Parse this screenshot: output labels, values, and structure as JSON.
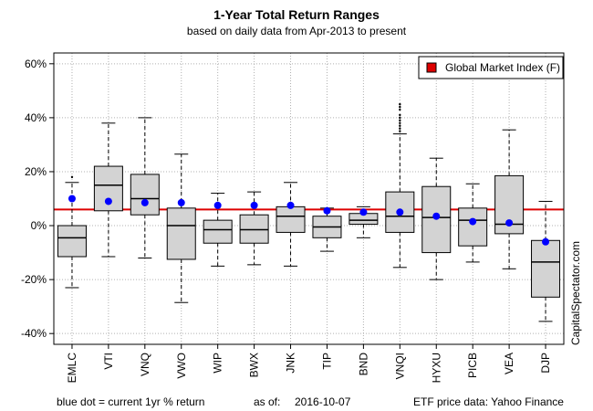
{
  "header": {
    "title": "1-Year Total Return Ranges",
    "subtitle": "based on daily data from Apr-2013 to present"
  },
  "footer": {
    "note": "blue dot = current 1yr % return",
    "asof_label": "as of:",
    "asof_date": "2016-10-07",
    "source": "ETF price data: Yahoo Finance"
  },
  "credit": "CapitalSpectator.com",
  "colors": {
    "box_fill": "#d3d3d3",
    "dot": "#0000ff",
    "reference_line": "#dd0000",
    "grid": "#b0b0b0"
  },
  "chart_data": {
    "type": "box",
    "title": "1-Year Total Return Ranges",
    "subtitle": "based on daily data from Apr-2013 to present",
    "ylim": [
      -44,
      64
    ],
    "y_ticks": [
      -40,
      -20,
      0,
      20,
      40,
      60
    ],
    "y_tick_labels": [
      "-40%",
      "-20%",
      "0%",
      "20%",
      "40%",
      "60%"
    ],
    "grid": true,
    "legend": {
      "position": "top-right",
      "entries": [
        "Global Market Index (F)"
      ]
    },
    "reference_line": {
      "name": "Global Market Index (F)",
      "value": 6
    },
    "categories": [
      "EMLC",
      "VTI",
      "VNQ",
      "VWO",
      "WIP",
      "BWX",
      "JNK",
      "TIP",
      "BND",
      "VNQI",
      "HYXU",
      "PICB",
      "VEA",
      "DJP"
    ],
    "boxes": [
      {
        "min": -23,
        "q1": -11.5,
        "median": -4.5,
        "q3": 0,
        "max": 16
      },
      {
        "min": -11.5,
        "q1": 5.5,
        "median": 15,
        "q3": 22,
        "max": 38
      },
      {
        "min": -12,
        "q1": 4,
        "median": 10,
        "q3": 19,
        "max": 40
      },
      {
        "min": -28.5,
        "q1": -12.5,
        "median": 0,
        "q3": 6.5,
        "max": 26.5
      },
      {
        "min": -15,
        "q1": -6.5,
        "median": -1.5,
        "q3": 2,
        "max": 12
      },
      {
        "min": -14.5,
        "q1": -6.5,
        "median": -1.5,
        "q3": 4,
        "max": 12.5
      },
      {
        "min": -15,
        "q1": -2.5,
        "median": 3.5,
        "q3": 7,
        "max": 16
      },
      {
        "min": -9.5,
        "q1": -4.5,
        "median": -0.5,
        "q3": 3.5,
        "max": 6.5
      },
      {
        "min": -4.5,
        "q1": 0.5,
        "median": 2,
        "q3": 4.5,
        "max": 7
      },
      {
        "min": -15.5,
        "q1": -2.5,
        "median": 3.5,
        "q3": 12.5,
        "max": 34
      },
      {
        "min": -20,
        "q1": -10,
        "median": 3,
        "q3": 14.5,
        "max": 25
      },
      {
        "min": -13.5,
        "q1": -7.5,
        "median": 2,
        "q3": 6.5,
        "max": 15.5
      },
      {
        "min": -16,
        "q1": -3,
        "median": 0.5,
        "q3": 18.5,
        "max": 35.5
      },
      {
        "min": -35.5,
        "q1": -26.5,
        "median": -13.5,
        "q3": -5.5,
        "max": 9
      }
    ],
    "outliers": [
      {
        "category": "EMLC",
        "values": [
          18
        ]
      },
      {
        "category": "VNQI",
        "values": [
          35,
          36,
          37,
          38,
          39,
          40,
          41,
          43,
          44,
          45
        ]
      }
    ],
    "current_1yr_return": [
      10,
      9,
      8.5,
      8.5,
      7.5,
      7.5,
      7.5,
      5.5,
      5,
      5,
      3.5,
      1.5,
      1,
      -6
    ]
  }
}
